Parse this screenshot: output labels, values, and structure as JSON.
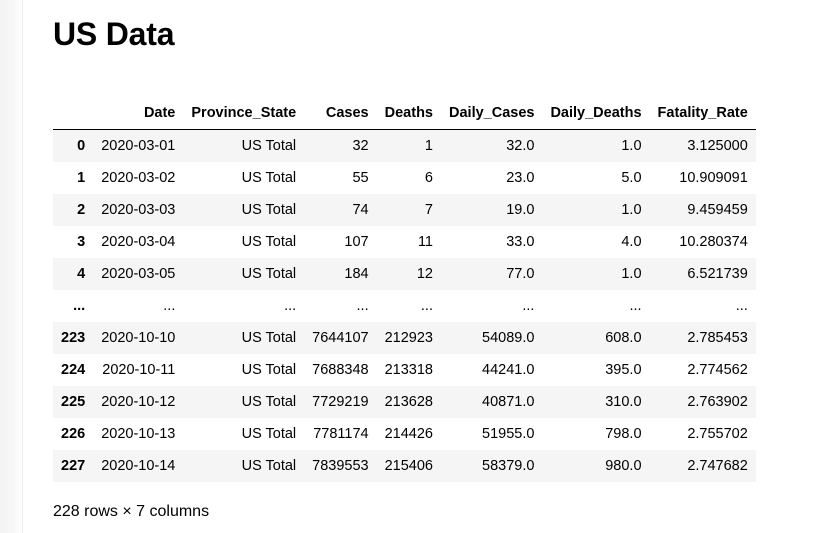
{
  "page": {
    "title": "US Data",
    "footer": "228 rows × 7 columns"
  },
  "table": {
    "columns": [
      "",
      "Date",
      "Province_State",
      "Cases",
      "Deaths",
      "Daily_Cases",
      "Daily_Deaths",
      "Fatality_Rate"
    ],
    "rows": [
      [
        "0",
        "2020-03-01",
        "US Total",
        "32",
        "1",
        "32.0",
        "1.0",
        "3.125000"
      ],
      [
        "1",
        "2020-03-02",
        "US Total",
        "55",
        "6",
        "23.0",
        "5.0",
        "10.909091"
      ],
      [
        "2",
        "2020-03-03",
        "US Total",
        "74",
        "7",
        "19.0",
        "1.0",
        "9.459459"
      ],
      [
        "3",
        "2020-03-04",
        "US Total",
        "107",
        "11",
        "33.0",
        "4.0",
        "10.280374"
      ],
      [
        "4",
        "2020-03-05",
        "US Total",
        "184",
        "12",
        "77.0",
        "1.0",
        "6.521739"
      ],
      [
        "...",
        "...",
        "...",
        "...",
        "...",
        "...",
        "...",
        "..."
      ],
      [
        "223",
        "2020-10-10",
        "US Total",
        "7644107",
        "212923",
        "54089.0",
        "608.0",
        "2.785453"
      ],
      [
        "224",
        "2020-10-11",
        "US Total",
        "7688348",
        "213318",
        "44241.0",
        "395.0",
        "2.774562"
      ],
      [
        "225",
        "2020-10-12",
        "US Total",
        "7729219",
        "213628",
        "40871.0",
        "310.0",
        "2.763902"
      ],
      [
        "226",
        "2020-10-13",
        "US Total",
        "7781174",
        "214426",
        "51955.0",
        "798.0",
        "2.755702"
      ],
      [
        "227",
        "2020-10-14",
        "US Total",
        "7839553",
        "215406",
        "58379.0",
        "980.0",
        "2.747682"
      ]
    ]
  }
}
